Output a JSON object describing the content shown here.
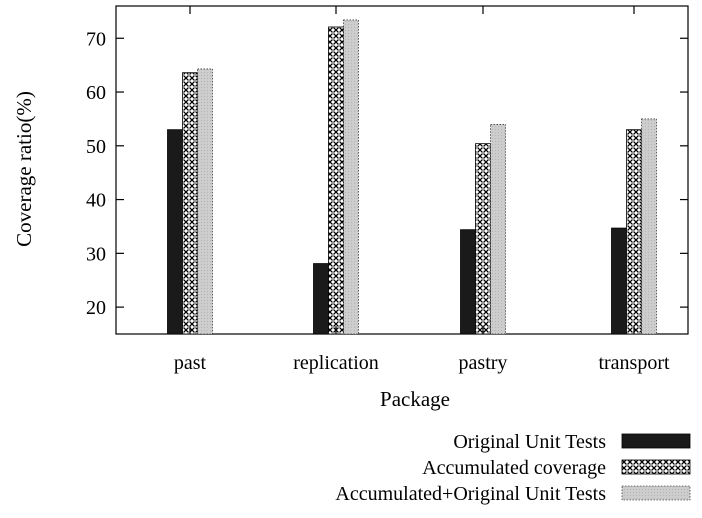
{
  "chart_data": {
    "type": "bar",
    "xlabel": "Package",
    "ylabel": "Coverage ratio(%)",
    "ylim": [
      15,
      76
    ],
    "yticks": [
      20,
      30,
      40,
      50,
      60,
      70
    ],
    "categories": [
      "past",
      "replication",
      "pastry",
      "transport"
    ],
    "series": [
      {
        "name": "Original Unit Tests",
        "values": [
          53,
          28.1,
          34.4,
          34.7
        ],
        "color": "#1a1a1a",
        "pattern": "solid"
      },
      {
        "name": "Accumulated coverage",
        "values": [
          63.6,
          72.1,
          50.4,
          53
        ],
        "color": "#000000",
        "pattern": "crosshatch"
      },
      {
        "name": "Accumulated+Original Unit Tests",
        "values": [
          64.3,
          73.4,
          54,
          55
        ],
        "color": "#c8c8c8",
        "pattern": "light-gray"
      }
    ],
    "legend_position": "bottom-right",
    "grid": false
  }
}
